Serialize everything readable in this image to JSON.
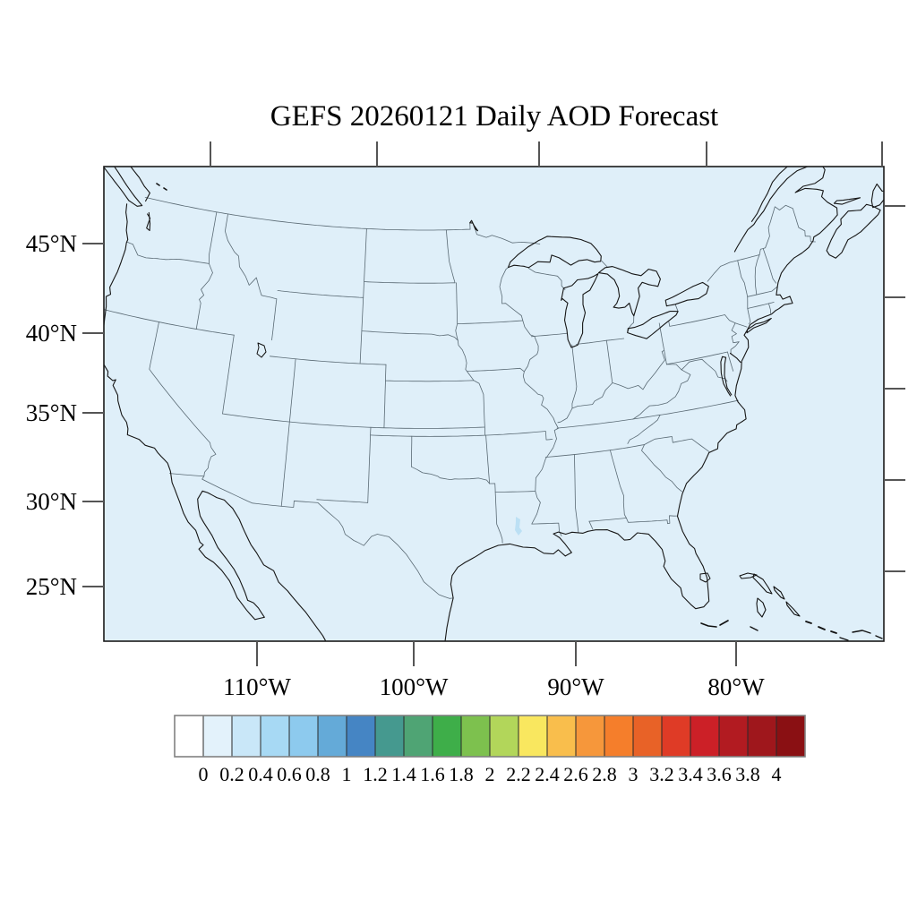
{
  "title": "GEFS 20260121 Daily AOD Forecast",
  "map": {
    "background_color": "#DFEFF9",
    "aod_patch_color": "#BCE0F4",
    "frame_color": "#1a1a1a",
    "coastline_color": "#161616",
    "state_border_color": "#5a6a74"
  },
  "axes": {
    "lat_labels": [
      "45°N",
      "40°N",
      "35°N",
      "30°N",
      "25°N"
    ],
    "lon_labels": [
      "110°W",
      "100°W",
      "90°W",
      "80°W"
    ]
  },
  "colorbar": {
    "labels": [
      "0",
      "0.2",
      "0.4",
      "0.6",
      "0.8",
      "1",
      "1.2",
      "1.4",
      "1.6",
      "1.8",
      "2",
      "2.2",
      "2.4",
      "2.6",
      "2.8",
      "3",
      "3.2",
      "3.4",
      "3.6",
      "3.8",
      "4"
    ],
    "colors": [
      "#FFFFFF",
      "#E3F2FB",
      "#C9E7F8",
      "#A7D9F4",
      "#8DCAEE",
      "#64AAD8",
      "#4585C4",
      "#45998F",
      "#4FA474",
      "#3EAE49",
      "#7DC14E",
      "#B2D65A",
      "#F9E75F",
      "#F9BE4C",
      "#F6973B",
      "#F57E2B",
      "#E86227",
      "#DF3B26",
      "#CC2027",
      "#B21B21",
      "#9F171C",
      "#8A1013"
    ],
    "outline_color": "#808080",
    "divider_color": "#2a2a2a"
  },
  "chart_data": {
    "type": "heatmap",
    "title": "GEFS 20260121 Daily AOD Forecast",
    "variable": "AOD",
    "region": "Continental United States",
    "lat_ticks_deg_n": [
      45,
      40,
      35,
      30,
      25
    ],
    "lon_ticks_deg_w": [
      110,
      100,
      90,
      80
    ],
    "colorbar_min": 0,
    "colorbar_max": 4,
    "colorbar_step": 0.2,
    "field_summary": "AOD below 0.2 everywhere except a small 0.2-0.4 patch over central Louisiana"
  }
}
